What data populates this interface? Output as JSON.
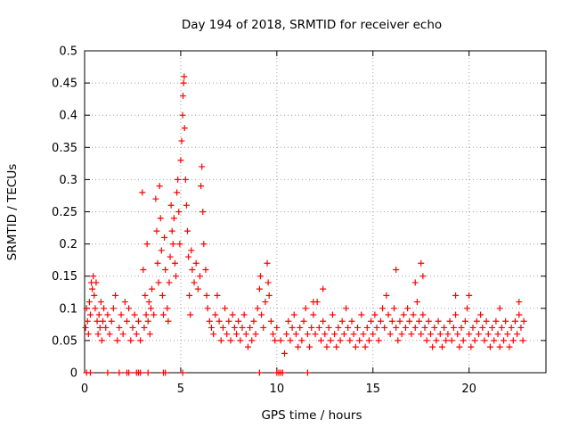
{
  "chart_data": {
    "type": "scatter",
    "title": "Day 194 of 2018, SRMTID for receiver echo",
    "xlabel": "GPS time / hours",
    "ylabel": "SRMTID / TECUs",
    "xlim": [
      0,
      24
    ],
    "ylim": [
      0,
      0.5
    ],
    "grid": true,
    "marker": "+",
    "series_color": "#ff0000",
    "x_ticks": [
      0,
      5,
      10,
      15,
      20
    ],
    "x_tick_labels": [
      "0",
      "5",
      "10",
      "15",
      "20"
    ],
    "y_ticks": [
      0,
      0.05,
      0.1,
      0.15,
      0.2,
      0.25,
      0.3,
      0.35,
      0.4,
      0.45,
      0.5
    ],
    "y_tick_labels": [
      "0",
      "0.05",
      "0.1",
      "0.15",
      "0.2",
      "0.25",
      "0.3",
      "0.35",
      "0.4",
      "0.45",
      "0.5"
    ],
    "series": [
      {
        "name": "SRMTID",
        "points": [
          [
            0.05,
            0.07
          ],
          [
            0.1,
            0.1
          ],
          [
            0.15,
            0.08
          ],
          [
            0.2,
            0.06
          ],
          [
            0.25,
            0.11
          ],
          [
            0.3,
            0.09
          ],
          [
            0.35,
            0.14
          ],
          [
            0.4,
            0.13
          ],
          [
            0.45,
            0.15
          ],
          [
            0.5,
            0.12
          ],
          [
            0.55,
            0.1
          ],
          [
            0.6,
            0.14
          ],
          [
            0.65,
            0.08
          ],
          [
            0.7,
            0.06
          ],
          [
            0.75,
            0.09
          ],
          [
            0.8,
            0.07
          ],
          [
            0.85,
            0.11
          ],
          [
            0.9,
            0.05
          ],
          [
            0.95,
            0.08
          ],
          [
            1.0,
            0.1
          ],
          [
            1.1,
            0.07
          ],
          [
            1.2,
            0.09
          ],
          [
            1.3,
            0.06
          ],
          [
            1.4,
            0.08
          ],
          [
            1.5,
            0.1
          ],
          [
            1.6,
            0.12
          ],
          [
            1.7,
            0.05
          ],
          [
            1.8,
            0.07
          ],
          [
            1.9,
            0.09
          ],
          [
            2.0,
            0.06
          ],
          [
            2.1,
            0.11
          ],
          [
            2.2,
            0.08
          ],
          [
            2.3,
            0.1
          ],
          [
            2.4,
            0.05
          ],
          [
            2.5,
            0.07
          ],
          [
            2.6,
            0.09
          ],
          [
            2.7,
            0.06
          ],
          [
            2.8,
            0.08
          ],
          [
            2.9,
            0.05
          ],
          [
            3.0,
            0.28
          ],
          [
            3.05,
            0.16
          ],
          [
            3.1,
            0.07
          ],
          [
            3.15,
            0.12
          ],
          [
            3.2,
            0.09
          ],
          [
            3.25,
            0.2
          ],
          [
            3.3,
            0.08
          ],
          [
            3.35,
            0.11
          ],
          [
            3.4,
            0.06
          ],
          [
            3.45,
            0.1
          ],
          [
            3.5,
            0.13
          ],
          [
            3.6,
            0.09
          ],
          [
            3.7,
            0.27
          ],
          [
            3.75,
            0.22
          ],
          [
            3.8,
            0.17
          ],
          [
            3.85,
            0.14
          ],
          [
            3.9,
            0.29
          ],
          [
            3.95,
            0.24
          ],
          [
            4.0,
            0.19
          ],
          [
            4.05,
            0.12
          ],
          [
            4.1,
            0.09
          ],
          [
            4.15,
            0.21
          ],
          [
            4.2,
            0.16
          ],
          [
            4.3,
            0.1
          ],
          [
            4.35,
            0.08
          ],
          [
            4.4,
            0.14
          ],
          [
            4.45,
            0.18
          ],
          [
            4.5,
            0.26
          ],
          [
            4.55,
            0.22
          ],
          [
            4.6,
            0.2
          ],
          [
            4.65,
            0.24
          ],
          [
            4.7,
            0.17
          ],
          [
            4.75,
            0.15
          ],
          [
            4.8,
            0.28
          ],
          [
            4.85,
            0.3
          ],
          [
            4.9,
            0.25
          ],
          [
            4.95,
            0.2
          ],
          [
            5.0,
            0.33
          ],
          [
            5.05,
            0.36
          ],
          [
            5.1,
            0.4
          ],
          [
            5.12,
            0.43
          ],
          [
            5.15,
            0.45
          ],
          [
            5.18,
            0.46
          ],
          [
            5.2,
            0.38
          ],
          [
            5.25,
            0.3
          ],
          [
            5.3,
            0.26
          ],
          [
            5.35,
            0.22
          ],
          [
            5.4,
            0.18
          ],
          [
            5.45,
            0.12
          ],
          [
            5.5,
            0.09
          ],
          [
            5.55,
            0.19
          ],
          [
            5.6,
            0.16
          ],
          [
            5.7,
            0.14
          ],
          [
            5.8,
            0.17
          ],
          [
            5.9,
            0.13
          ],
          [
            6.0,
            0.15
          ],
          [
            6.05,
            0.29
          ],
          [
            6.1,
            0.32
          ],
          [
            6.15,
            0.25
          ],
          [
            6.2,
            0.2
          ],
          [
            6.3,
            0.16
          ],
          [
            6.35,
            0.12
          ],
          [
            6.4,
            0.1
          ],
          [
            6.5,
            0.08
          ],
          [
            6.6,
            0.07
          ],
          [
            6.7,
            0.06
          ],
          [
            6.8,
            0.09
          ],
          [
            6.9,
            0.12
          ],
          [
            7.0,
            0.08
          ],
          [
            7.1,
            0.05
          ],
          [
            7.2,
            0.07
          ],
          [
            7.3,
            0.1
          ],
          [
            7.4,
            0.06
          ],
          [
            7.5,
            0.08
          ],
          [
            7.6,
            0.05
          ],
          [
            7.7,
            0.09
          ],
          [
            7.8,
            0.07
          ],
          [
            7.9,
            0.06
          ],
          [
            8.0,
            0.08
          ],
          [
            8.1,
            0.05
          ],
          [
            8.2,
            0.07
          ],
          [
            8.3,
            0.09
          ],
          [
            8.4,
            0.06
          ],
          [
            8.5,
            0.04
          ],
          [
            8.6,
            0.07
          ],
          [
            8.7,
            0.05
          ],
          [
            8.8,
            0.08
          ],
          [
            8.9,
            0.06
          ],
          [
            9.0,
            0.1
          ],
          [
            9.1,
            0.13
          ],
          [
            9.15,
            0.15
          ],
          [
            9.2,
            0.09
          ],
          [
            9.3,
            0.07
          ],
          [
            9.4,
            0.11
          ],
          [
            9.5,
            0.17
          ],
          [
            9.55,
            0.14
          ],
          [
            9.6,
            0.12
          ],
          [
            9.7,
            0.08
          ],
          [
            9.8,
            0.06
          ],
          [
            9.9,
            0.05
          ],
          [
            10.0,
            0.07
          ],
          [
            10.2,
            0.05
          ],
          [
            10.4,
            0.03
          ],
          [
            10.5,
            0.06
          ],
          [
            10.6,
            0.08
          ],
          [
            10.7,
            0.05
          ],
          [
            10.8,
            0.07
          ],
          [
            10.9,
            0.09
          ],
          [
            11.0,
            0.06
          ],
          [
            11.1,
            0.04
          ],
          [
            11.2,
            0.07
          ],
          [
            11.3,
            0.05
          ],
          [
            11.4,
            0.08
          ],
          [
            11.5,
            0.1
          ],
          [
            11.6,
            0.06
          ],
          [
            11.7,
            0.04
          ],
          [
            11.8,
            0.07
          ],
          [
            11.9,
            0.09
          ],
          [
            12.0,
            0.06
          ],
          [
            12.1,
            0.11
          ],
          [
            12.2,
            0.07
          ],
          [
            12.3,
            0.05
          ],
          [
            12.4,
            0.08
          ],
          [
            12.5,
            0.06
          ],
          [
            12.6,
            0.04
          ],
          [
            12.7,
            0.07
          ],
          [
            12.8,
            0.05
          ],
          [
            12.9,
            0.09
          ],
          [
            13.0,
            0.06
          ],
          [
            13.1,
            0.04
          ],
          [
            13.2,
            0.07
          ],
          [
            13.3,
            0.05
          ],
          [
            13.4,
            0.08
          ],
          [
            13.5,
            0.06
          ],
          [
            13.6,
            0.1
          ],
          [
            13.7,
            0.07
          ],
          [
            13.8,
            0.05
          ],
          [
            13.9,
            0.08
          ],
          [
            14.0,
            0.06
          ],
          [
            14.1,
            0.04
          ],
          [
            14.2,
            0.07
          ],
          [
            14.3,
            0.05
          ],
          [
            14.4,
            0.09
          ],
          [
            14.5,
            0.06
          ],
          [
            14.6,
            0.04
          ],
          [
            14.7,
            0.07
          ],
          [
            14.8,
            0.05
          ],
          [
            14.9,
            0.08
          ],
          [
            15.0,
            0.06
          ],
          [
            15.1,
            0.09
          ],
          [
            15.2,
            0.07
          ],
          [
            15.3,
            0.05
          ],
          [
            15.4,
            0.08
          ],
          [
            15.5,
            0.1
          ],
          [
            15.6,
            0.07
          ],
          [
            15.7,
            0.12
          ],
          [
            15.8,
            0.09
          ],
          [
            15.9,
            0.06
          ],
          [
            16.0,
            0.08
          ],
          [
            16.1,
            0.1
          ],
          [
            16.2,
            0.07
          ],
          [
            16.3,
            0.05
          ],
          [
            16.4,
            0.08
          ],
          [
            16.5,
            0.06
          ],
          [
            16.6,
            0.09
          ],
          [
            16.7,
            0.07
          ],
          [
            16.8,
            0.1
          ],
          [
            16.9,
            0.08
          ],
          [
            17.0,
            0.06
          ],
          [
            17.1,
            0.09
          ],
          [
            17.2,
            0.07
          ],
          [
            17.3,
            0.11
          ],
          [
            17.4,
            0.08
          ],
          [
            17.5,
            0.06
          ],
          [
            17.6,
            0.09
          ],
          [
            17.7,
            0.07
          ],
          [
            17.8,
            0.05
          ],
          [
            17.9,
            0.08
          ],
          [
            18.0,
            0.06
          ],
          [
            18.1,
            0.04
          ],
          [
            18.2,
            0.07
          ],
          [
            18.3,
            0.05
          ],
          [
            18.4,
            0.08
          ],
          [
            18.5,
            0.06
          ],
          [
            18.6,
            0.04
          ],
          [
            18.7,
            0.07
          ],
          [
            18.8,
            0.05
          ],
          [
            18.9,
            0.06
          ],
          [
            19.0,
            0.08
          ],
          [
            19.1,
            0.05
          ],
          [
            19.2,
            0.07
          ],
          [
            19.3,
            0.09
          ],
          [
            19.4,
            0.06
          ],
          [
            19.5,
            0.04
          ],
          [
            19.6,
            0.07
          ],
          [
            19.7,
            0.05
          ],
          [
            19.8,
            0.08
          ],
          [
            19.9,
            0.1
          ],
          [
            20.0,
            0.06
          ],
          [
            20.1,
            0.04
          ],
          [
            20.2,
            0.07
          ],
          [
            20.3,
            0.05
          ],
          [
            20.4,
            0.08
          ],
          [
            20.5,
            0.06
          ],
          [
            20.6,
            0.09
          ],
          [
            20.7,
            0.07
          ],
          [
            20.8,
            0.05
          ],
          [
            20.9,
            0.08
          ],
          [
            21.0,
            0.06
          ],
          [
            21.1,
            0.04
          ],
          [
            21.2,
            0.07
          ],
          [
            21.3,
            0.05
          ],
          [
            21.4,
            0.08
          ],
          [
            21.5,
            0.06
          ],
          [
            21.6,
            0.04
          ],
          [
            21.7,
            0.07
          ],
          [
            21.8,
            0.05
          ],
          [
            21.9,
            0.08
          ],
          [
            22.0,
            0.06
          ],
          [
            22.1,
            0.04
          ],
          [
            22.2,
            0.07
          ],
          [
            22.3,
            0.05
          ],
          [
            22.4,
            0.08
          ],
          [
            22.5,
            0.06
          ],
          [
            22.6,
            0.09
          ],
          [
            22.7,
            0.07
          ],
          [
            22.8,
            0.05
          ],
          [
            22.85,
            0.08
          ],
          [
            16.2,
            0.16
          ],
          [
            17.2,
            0.14
          ],
          [
            17.5,
            0.17
          ],
          [
            17.6,
            0.15
          ],
          [
            20.0,
            0.12
          ],
          [
            12.4,
            0.13
          ],
          [
            19.3,
            0.12
          ],
          [
            21.6,
            0.1
          ],
          [
            22.6,
            0.11
          ],
          [
            11.9,
            0.11
          ],
          [
            0.1,
            0.0
          ],
          [
            0.3,
            0.0
          ],
          [
            1.2,
            0.0
          ],
          [
            1.8,
            0.0
          ],
          [
            2.2,
            0.0
          ],
          [
            2.3,
            0.0
          ],
          [
            2.7,
            0.0
          ],
          [
            2.8,
            0.0
          ],
          [
            2.9,
            0.0
          ],
          [
            3.3,
            0.0
          ],
          [
            4.1,
            0.0
          ],
          [
            4.2,
            0.0
          ],
          [
            5.1,
            0.0
          ],
          [
            9.1,
            0.0
          ],
          [
            10.0,
            0.0
          ],
          [
            10.1,
            0.0
          ],
          [
            10.2,
            0.0
          ],
          [
            10.3,
            0.0
          ],
          [
            11.6,
            0.0
          ]
        ]
      }
    ]
  }
}
